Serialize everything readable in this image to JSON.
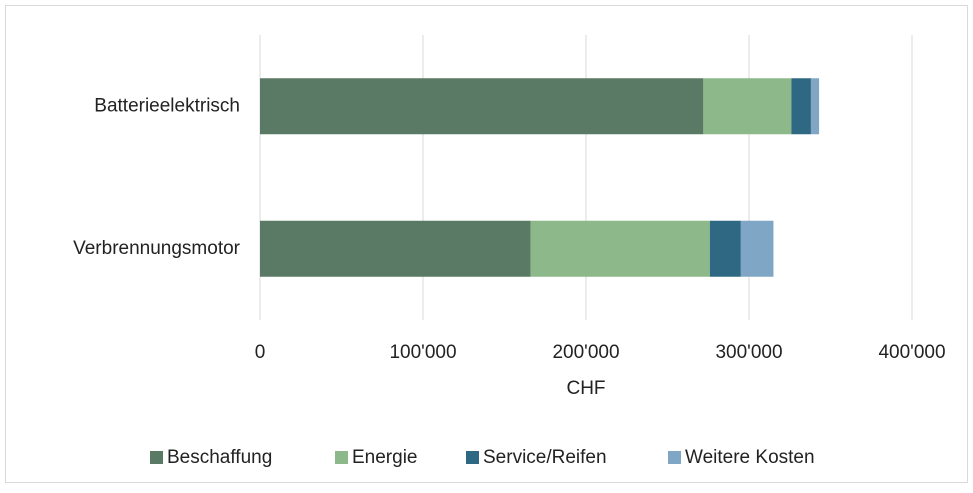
{
  "chart_data": {
    "type": "stacked_barh",
    "categories": [
      "Batterieelektrisch",
      "Verbrennungsmotor"
    ],
    "series": [
      {
        "name": "Beschaffung",
        "color": "#5b7a65",
        "values": [
          272000,
          166000
        ]
      },
      {
        "name": "Energie",
        "color": "#8db88a",
        "values": [
          54000,
          110000
        ]
      },
      {
        "name": "Service/Reifen",
        "color": "#2e6882",
        "values": [
          12000,
          19000
        ]
      },
      {
        "name": "Weitere Kosten",
        "color": "#7fa6c4",
        "values": [
          5000,
          20000
        ]
      }
    ],
    "xlabel": "CHF",
    "xlim": [
      0,
      400000
    ],
    "xticks": [
      0,
      {
        "value": 100000,
        "label": "100'000"
      },
      {
        "value": 200000,
        "label": "200'000"
      },
      {
        "value": 300000,
        "label": "300'000"
      },
      {
        "value": 400000,
        "label": "400'000"
      }
    ],
    "grid": true,
    "legend": "bottom"
  }
}
